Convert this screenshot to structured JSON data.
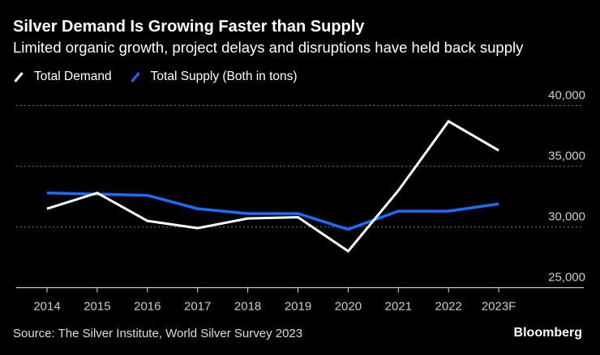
{
  "chart_data": {
    "type": "line",
    "title": "Silver Demand Is Growing Faster than Supply",
    "subtitle": "Limited organic growth, project delays and disruptions have held back supply",
    "categories": [
      "2014",
      "2015",
      "2016",
      "2017",
      "2018",
      "2019",
      "2020",
      "2021",
      "2022",
      "2023F"
    ],
    "series": [
      {
        "name": "Total Demand",
        "color": "#ffffff",
        "values": [
          31500,
          32800,
          30500,
          29900,
          30700,
          30800,
          28000,
          33000,
          38700,
          36300
        ]
      },
      {
        "name": "Total Supply (Both in tons)",
        "color": "#1a6dff",
        "values": [
          32800,
          32700,
          32600,
          31500,
          31100,
          31100,
          29800,
          31300,
          31300,
          31900
        ]
      }
    ],
    "ylim": [
      25000,
      40000
    ],
    "yticks": [
      "25,000",
      "30,000",
      "35,000",
      "40,000"
    ],
    "y_axis_side": "right",
    "grid": true,
    "legend_position": "top-left",
    "source": "Source: The Silver Institute, World Silver Survey 2023",
    "brand": "Bloomberg"
  }
}
